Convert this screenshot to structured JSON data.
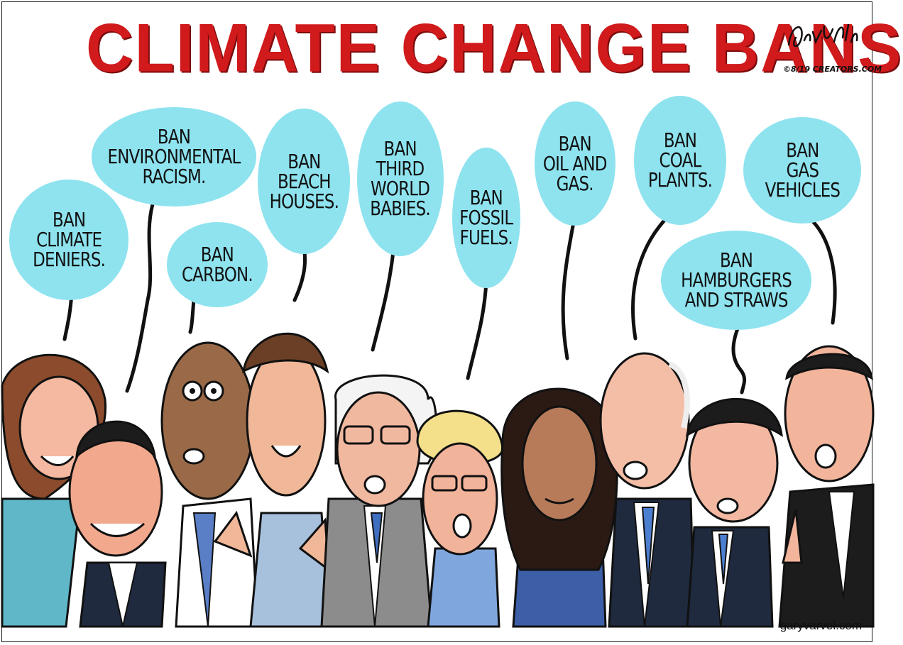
{
  "cartoon": {
    "title": "CLIMATE CHANGE BANS",
    "artist_signature": "Gary Varvel",
    "copyright": "©8/19 CREATORS.COM",
    "website": "garyvarvel.com",
    "bubbles": [
      {
        "text": "BAN\nCLIMATE\nDENIERS."
      },
      {
        "text": "BAN\nENVIRONMENTAL\nRACISM."
      },
      {
        "text": "BAN\nCARBON."
      },
      {
        "text": "BAN\nBEACH\nHOUSES."
      },
      {
        "text": "BAN\nTHIRD\nWORLD\nBABIES."
      },
      {
        "text": "BAN\nFOSSIL\nFUELS."
      },
      {
        "text": "BAN\nOIL AND\nGAS."
      },
      {
        "text": "BAN\nCOAL\nPLANTS."
      },
      {
        "text": "BAN\nHAMBURGERS\nAND STRAWS"
      },
      {
        "text": "BAN\nGAS\nVEHICLES"
      }
    ],
    "colors": {
      "title_red": "#d01a1c",
      "bubble_cyan": "#8ee3ef"
    }
  }
}
